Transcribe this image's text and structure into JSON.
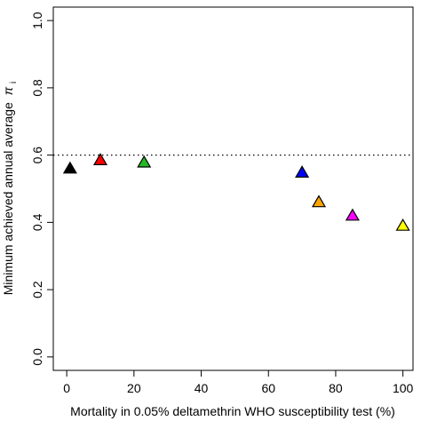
{
  "chart_data": {
    "type": "scatter",
    "title": "",
    "xlabel": "Mortality in 0.05% deltamethrin WHO susceptibility test (%)",
    "ylabel": "Minimum achieved annual average",
    "ylabel_symbol": "π",
    "ylabel_subscript": "i",
    "xlim": [
      -4,
      103
    ],
    "ylim": [
      -0.04,
      1.04
    ],
    "x_ticks": [
      0,
      20,
      40,
      60,
      80,
      100
    ],
    "y_ticks": [
      0.0,
      0.2,
      0.4,
      0.6,
      0.8,
      1.0
    ],
    "x_tick_labels": [
      "0",
      "20",
      "40",
      "60",
      "80",
      "100"
    ],
    "y_tick_labels": [
      "0.0",
      "0.2",
      "0.4",
      "0.6",
      "0.8",
      "1.0"
    ],
    "grid": false,
    "legend": "none",
    "reference_line": {
      "y": 0.6,
      "style": "dotted",
      "color": "#000000"
    },
    "marker": "triangle",
    "points": [
      {
        "x": 1,
        "y": 0.56,
        "color": "#000000"
      },
      {
        "x": 10,
        "y": 0.585,
        "color": "#ff0000"
      },
      {
        "x": 23,
        "y": 0.578,
        "color": "#22bb22"
      },
      {
        "x": 70,
        "y": 0.548,
        "color": "#0000ff"
      },
      {
        "x": 75,
        "y": 0.46,
        "color": "#ffa500"
      },
      {
        "x": 85,
        "y": 0.42,
        "color": "#ff00ff"
      },
      {
        "x": 100,
        "y": 0.39,
        "color": "#ffff00"
      }
    ]
  }
}
